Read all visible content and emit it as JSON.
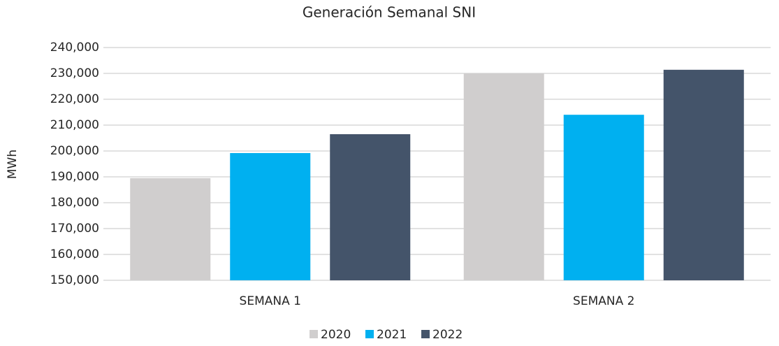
{
  "chart_data": {
    "type": "bar",
    "title": "Generación Semanal SNI",
    "y_label": "MWh",
    "categories": [
      "SEMANA 1",
      "SEMANA 2"
    ],
    "series": [
      {
        "name": "2020",
        "color": "#d0cece",
        "values": [
          189500,
          230000
        ]
      },
      {
        "name": "2021",
        "color": "#00b0f0",
        "values": [
          199200,
          214000
        ]
      },
      {
        "name": "2022",
        "color": "#44546a",
        "values": [
          206500,
          231400
        ]
      }
    ],
    "ylim": [
      150000,
      240000
    ],
    "yticks": [
      {
        "value": 150000,
        "label": "150,000"
      },
      {
        "value": 160000,
        "label": "160,000"
      },
      {
        "value": 170000,
        "label": "170,000"
      },
      {
        "value": 180000,
        "label": "180,000"
      },
      {
        "value": 190000,
        "label": "190,000"
      },
      {
        "value": 200000,
        "label": "200,000"
      },
      {
        "value": 210000,
        "label": "210,000"
      },
      {
        "value": 220000,
        "label": "220,000"
      },
      {
        "value": 230000,
        "label": "230,000"
      },
      {
        "value": 240000,
        "label": "240,000"
      }
    ],
    "grid": true,
    "legend": "bottom"
  }
}
